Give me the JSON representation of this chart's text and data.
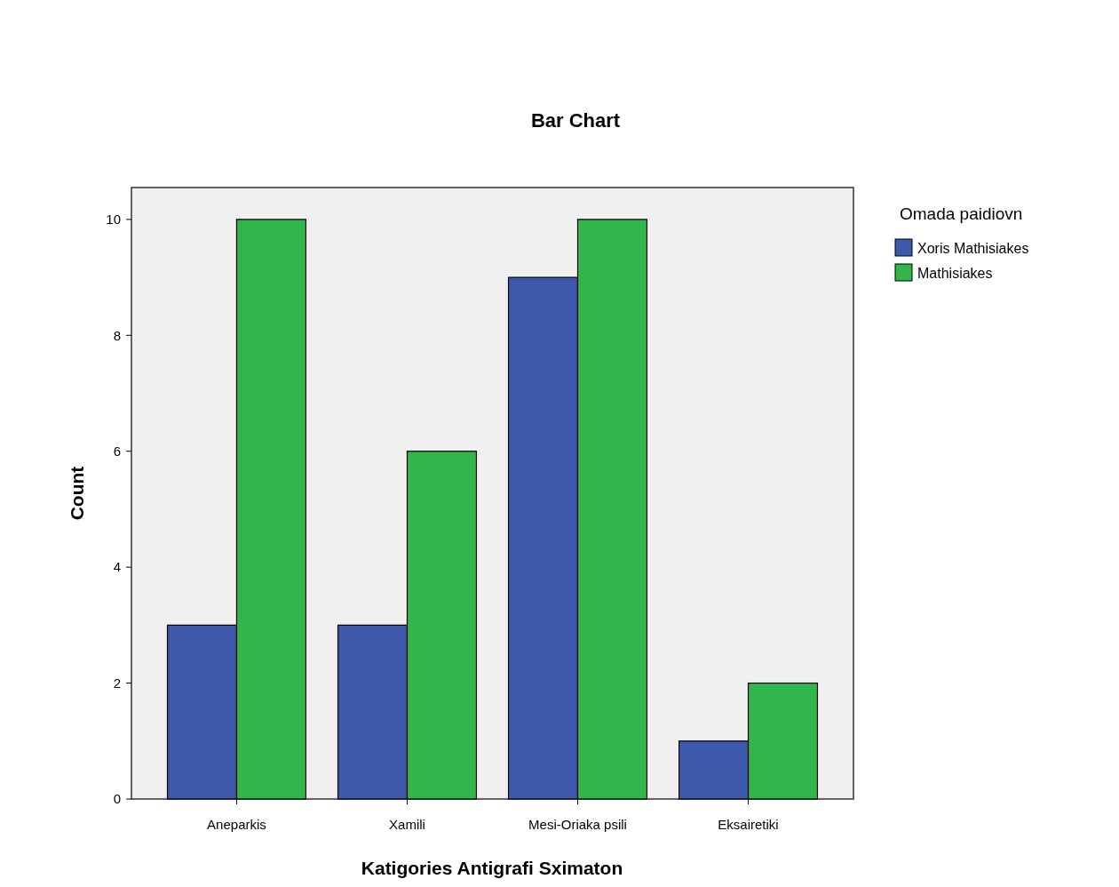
{
  "chart_data": {
    "type": "bar",
    "title": "Bar Chart",
    "xlabel": "Katigories Antigrafi Sximaton",
    "ylabel": "Count",
    "legend_title": "Omada paidiovn",
    "categories": [
      "Aneparkis",
      "Xamili",
      "Mesi-Oriaka psili",
      "Eksairetiki"
    ],
    "series": [
      {
        "name": "Xoris Mathisiakes",
        "color": "#3e58ac",
        "values": [
          3,
          3,
          9,
          1
        ]
      },
      {
        "name": "Mathisiakes",
        "color": "#31b64b",
        "values": [
          10,
          6,
          10,
          2
        ]
      }
    ],
    "ylim": [
      0,
      10.55
    ],
    "yticks": [
      0,
      2,
      4,
      6,
      8,
      10
    ],
    "grid": false,
    "legend": "top right"
  }
}
